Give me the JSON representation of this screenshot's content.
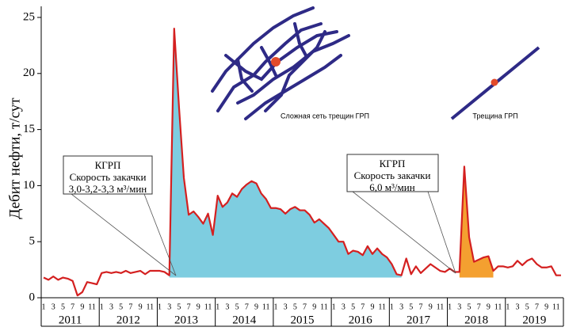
{
  "chart_data": {
    "type": "line",
    "y_label": "Дебит нефти, т/сут",
    "categories": [
      "1",
      null,
      "3",
      null,
      "5",
      null,
      "7",
      null,
      "9",
      null,
      "11",
      null,
      "1",
      null,
      "3",
      null,
      "5",
      null,
      "7",
      null,
      "9",
      null,
      "11",
      null,
      "1",
      null,
      "3",
      null,
      "5",
      null,
      "7",
      null,
      "9",
      null,
      "11",
      null,
      "1",
      null,
      "3",
      null,
      "5",
      null,
      "7",
      null,
      "9",
      null,
      "11",
      null,
      "1",
      null,
      "3",
      null,
      "5",
      null,
      "7",
      null,
      "9",
      null,
      "11",
      null,
      "1",
      null,
      "3",
      null,
      "5",
      null,
      "7",
      null,
      "9",
      null,
      "11",
      null,
      "1",
      null,
      "3",
      null,
      "5",
      null,
      "7",
      null,
      "9",
      null,
      "11",
      null,
      "1",
      null,
      "3",
      null,
      "5",
      null,
      "7",
      null,
      "9",
      null,
      "11",
      null,
      "1",
      null,
      "3",
      null,
      "5",
      null,
      "7",
      null,
      "9",
      null,
      "11",
      null
    ],
    "years": [
      "2011",
      "2012",
      "2013",
      "2014",
      "2015",
      "2016",
      "2017",
      "2018",
      "2019"
    ],
    "series": [
      {
        "color": "#d42020",
        "values": [
          1.8,
          1.6,
          1.9,
          1.6,
          1.8,
          1.7,
          1.5,
          0.2,
          0.5,
          1.4,
          1.3,
          1.2,
          2.2,
          2.3,
          2.2,
          2.3,
          2.2,
          2.4,
          2.2,
          2.3,
          2.4,
          2.1,
          2.4,
          2.4,
          2.4,
          2.3,
          2.0,
          24,
          17,
          10.7,
          7.4,
          7.7,
          7.2,
          6.6,
          7.5,
          5.6,
          9.1,
          8.1,
          8.5,
          9.3,
          9.0,
          9.7,
          10.1,
          10.4,
          10.2,
          9.3,
          8.8,
          8.0,
          8.0,
          7.9,
          7.5,
          7.9,
          8.1,
          7.8,
          7.8,
          7.4,
          6.7,
          7.0,
          6.6,
          6.2,
          5.6,
          5.0,
          5.0,
          3.9,
          4.2,
          4.1,
          3.8,
          4.6,
          3.9,
          4.4,
          3.9,
          3.6,
          3.0,
          2.1,
          2.0,
          3.5,
          2.1,
          2.8,
          2.2,
          2.6,
          3.0,
          2.7,
          2.4,
          2.3,
          2.6,
          2.3,
          2.3,
          11.7,
          5.4,
          3.2,
          3.4,
          3.6,
          3.7,
          2.4,
          2.8,
          2.8,
          2.7,
          2.8,
          3.3,
          2.9,
          3.3,
          3.5,
          3.0,
          2.7,
          2.7,
          2.8,
          2.0,
          2.0
        ]
      }
    ],
    "fills": [
      {
        "start": 26,
        "end": 74,
        "baseline": 1.8,
        "color": "#7ecde0"
      },
      {
        "start": 86,
        "end": 93,
        "baseline": 1.8,
        "color": "#f4a030"
      }
    ],
    "ylim": [
      0,
      25
    ],
    "yticks": [
      0,
      5,
      10,
      15,
      20,
      25
    ],
    "annotations": [
      {
        "lines": [
          "КГРП",
          "Скорость закачки",
          "3,0-3,2-3,3 м³/мин"
        ]
      },
      {
        "lines": [
          "КГРП",
          "Скорость закачки",
          "6,0 м³/мин"
        ]
      }
    ],
    "diagram_labels": [
      "Сложная сеть трещин ГРП",
      "Трещина ГРП"
    ]
  }
}
